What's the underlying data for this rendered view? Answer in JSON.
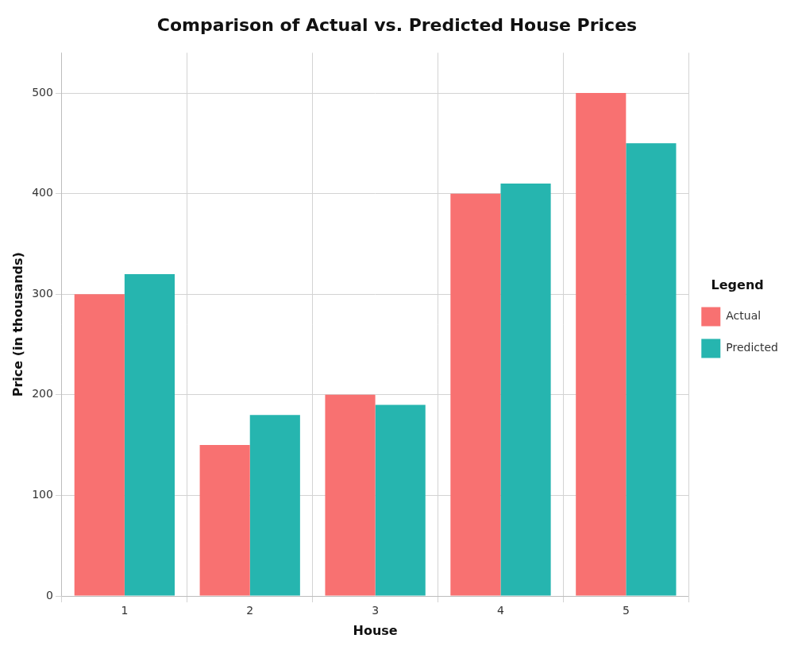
{
  "chart_data": {
    "type": "bar",
    "title": "Comparison of Actual vs. Predicted House Prices",
    "xlabel": "House",
    "ylabel": "Price (in thousands)",
    "categories": [
      "1",
      "2",
      "3",
      "4",
      "5"
    ],
    "series": [
      {
        "name": "Actual",
        "color": "#F87171",
        "values": [
          300,
          150,
          200,
          400,
          500
        ]
      },
      {
        "name": "Predicted",
        "color": "#26B5AF",
        "values": [
          320,
          180,
          190,
          410,
          450
        ]
      }
    ],
    "ylim": [
      0,
      540
    ],
    "yticks": [
      0,
      100,
      200,
      300,
      400,
      500
    ],
    "grid": true,
    "legend": "right",
    "legend_title": "Legend"
  }
}
